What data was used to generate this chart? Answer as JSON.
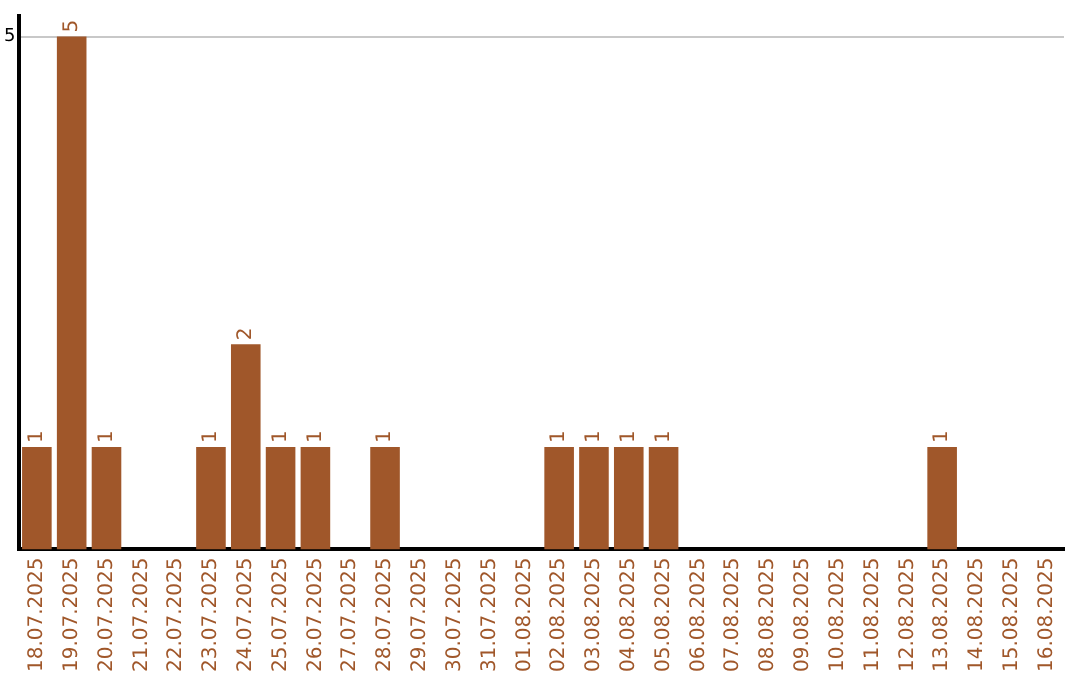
{
  "chart_data": {
    "type": "bar",
    "categories": [
      "18.07.2025",
      "19.07.2025",
      "20.07.2025",
      "21.07.2025",
      "22.07.2025",
      "23.07.2025",
      "24.07.2025",
      "25.07.2025",
      "26.07.2025",
      "27.07.2025",
      "28.07.2025",
      "29.07.2025",
      "30.07.2025",
      "31.07.2025",
      "01.08.2025",
      "02.08.2025",
      "03.08.2025",
      "04.08.2025",
      "05.08.2025",
      "06.08.2025",
      "07.08.2025",
      "08.08.2025",
      "09.08.2025",
      "10.08.2025",
      "11.08.2025",
      "12.08.2025",
      "13.08.2025",
      "14.08.2025",
      "15.08.2025",
      "16.08.2025"
    ],
    "values": [
      1,
      5,
      1,
      0,
      0,
      1,
      2,
      1,
      1,
      0,
      1,
      0,
      0,
      0,
      0,
      1,
      1,
      1,
      1,
      0,
      0,
      0,
      0,
      0,
      0,
      0,
      1,
      0,
      0,
      0
    ],
    "value_labels": [
      "1",
      "5",
      "1",
      null,
      null,
      "1",
      "2",
      "1",
      "1",
      null,
      "1",
      null,
      null,
      null,
      null,
      "1",
      "1",
      "1",
      "1",
      null,
      null,
      null,
      null,
      null,
      null,
      null,
      "1",
      null,
      null,
      null
    ],
    "color": "#a0572a",
    "ylim": [
      0,
      5.2
    ],
    "yticks": [
      5
    ],
    "grid": "y",
    "legend": false
  }
}
